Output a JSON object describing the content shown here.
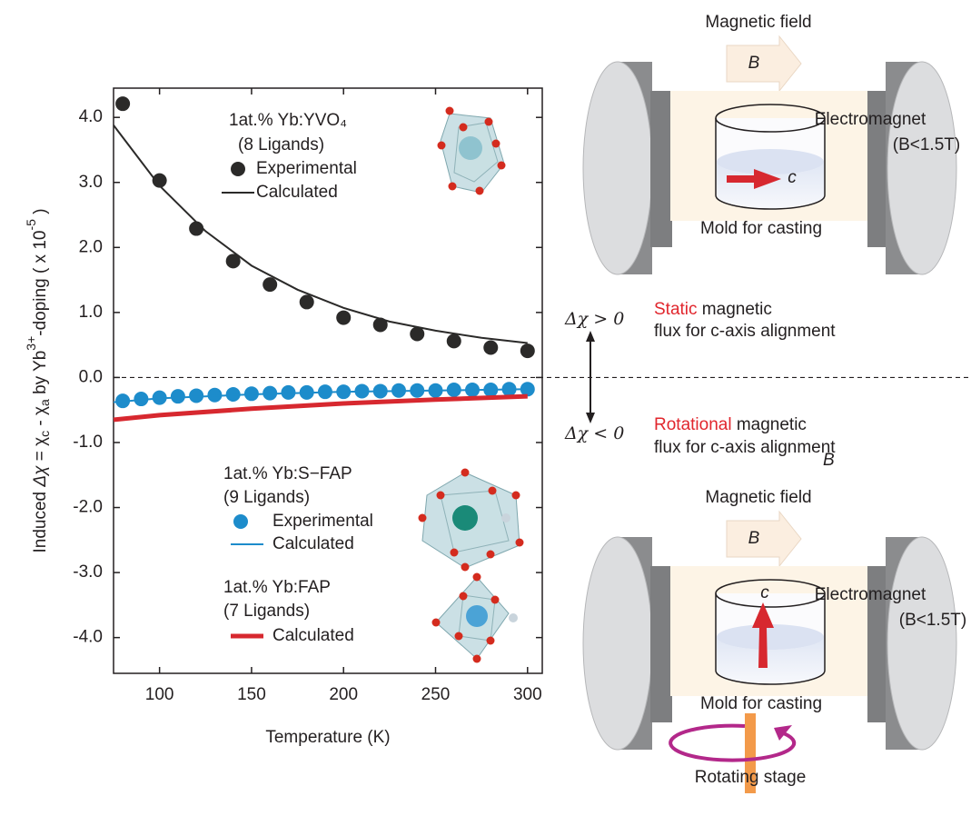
{
  "chart_data": {
    "type": "scatter",
    "x_label": "Temperature (K)",
    "y_label": [
      "Induced ",
      "Δχ",
      " = χ",
      "c",
      " - χ",
      "a",
      " by Yb",
      "3+",
      "-doping ( x 10",
      "-5",
      " )"
    ],
    "xlim": [
      75,
      308
    ],
    "xticks": [
      100,
      150,
      200,
      250,
      300
    ],
    "ylim": [
      -4.55,
      4.45
    ],
    "yticks": [
      {
        "value": 4,
        "label": "4.0"
      },
      {
        "value": 3,
        "label": "3.0"
      },
      {
        "value": 2,
        "label": "2.0"
      },
      {
        "value": 1,
        "label": "1.0"
      },
      {
        "value": 0,
        "label": "0.0"
      },
      {
        "value": -1,
        "label": "-1.0"
      },
      {
        "value": -2,
        "label": "-2.0"
      },
      {
        "value": -3,
        "label": "-3.0"
      },
      {
        "value": -4,
        "label": "-4.0"
      }
    ],
    "groups": [
      {
        "title": "1at.% Yb:YVO₄",
        "ligands": "(8 Ligands)"
      },
      {
        "title": "1at.% Yb:S−FAP",
        "ligands": "(9 Ligands)"
      },
      {
        "title": "1at.% Yb:FAP",
        "ligands": "(7 Ligands)"
      }
    ],
    "series": [
      {
        "name": "Experimental",
        "mode": "markers",
        "color": "#2b2a29",
        "x": [
          80,
          100,
          120,
          140,
          160,
          180,
          200,
          220,
          240,
          260,
          280,
          300
        ],
        "values": [
          4.21,
          3.03,
          2.29,
          1.79,
          1.43,
          1.16,
          0.92,
          0.81,
          0.67,
          0.56,
          0.46,
          0.41
        ]
      },
      {
        "name": "Calculated",
        "mode": "lines",
        "color": "#2b2a29",
        "line_width": 2,
        "x": [
          75,
          100,
          125,
          150,
          175,
          200,
          225,
          250,
          275,
          300
        ],
        "values": [
          3.88,
          2.95,
          2.25,
          1.72,
          1.35,
          1.07,
          0.86,
          0.72,
          0.61,
          0.53
        ]
      },
      {
        "name": "Experimental",
        "mode": "markers",
        "color": "#1d8ccb",
        "x": [
          80,
          90,
          100,
          110,
          120,
          130,
          140,
          150,
          160,
          170,
          180,
          190,
          200,
          210,
          220,
          230,
          240,
          250,
          260,
          270,
          280,
          290,
          300
        ],
        "values": [
          -0.36,
          -0.33,
          -0.31,
          -0.29,
          -0.28,
          -0.27,
          -0.26,
          -0.25,
          -0.24,
          -0.23,
          -0.23,
          -0.22,
          -0.22,
          -0.21,
          -0.21,
          -0.2,
          -0.2,
          -0.2,
          -0.19,
          -0.19,
          -0.19,
          -0.18,
          -0.18
        ]
      },
      {
        "name": "Calculated",
        "mode": "lines",
        "color": "#1d8ccb",
        "line_width": 2,
        "x": [
          75,
          100,
          150,
          200,
          250,
          300
        ],
        "values": [
          -0.38,
          -0.32,
          -0.26,
          -0.22,
          -0.2,
          -0.18
        ]
      },
      {
        "name": "Calculated",
        "mode": "lines",
        "color": "#d7282f",
        "line_width": 5,
        "x": [
          75,
          100,
          150,
          200,
          250,
          300
        ],
        "values": [
          -0.65,
          -0.58,
          -0.48,
          -0.4,
          -0.34,
          -0.29
        ]
      }
    ]
  },
  "diagram": {
    "top": {
      "field_label": "Magnetic field",
      "field_symbol": "B",
      "magnet_label": "Electromagnet",
      "magnet_limit": "(B<1.5T)",
      "axis": "c",
      "mold_label": "Mold for casting"
    },
    "middle": {
      "positive": {
        "condition": "Δχ > 0",
        "keyword": "Static",
        "line1": " magnetic",
        "line2": "flux for c-axis alignment"
      },
      "negative": {
        "condition": "Δχ < 0",
        "keyword": "Rotational",
        "line1": " magnetic",
        "line2": "flux for c-axis alignment"
      },
      "stray_label": "B"
    },
    "bottom": {
      "field_label": "Magnetic field",
      "field_symbol": "B",
      "magnet_label": "Electromagnet",
      "magnet_limit": "(B<1.5T)",
      "axis": "c",
      "mold_label": "Mold for casting",
      "stage_label": "Rotating stage"
    }
  }
}
